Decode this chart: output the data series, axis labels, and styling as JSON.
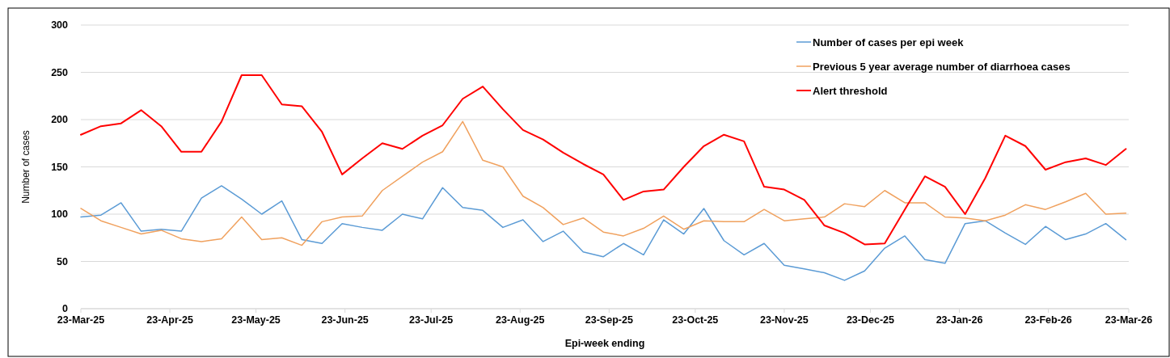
{
  "chart_data": {
    "type": "line",
    "xlabel": "Epi-week ending",
    "ylabel": "Number of cases",
    "x": [
      "2025-03-23",
      "2025-03-30",
      "2025-04-06",
      "2025-04-13",
      "2025-04-20",
      "2025-04-27",
      "2025-05-04",
      "2025-05-11",
      "2025-05-18",
      "2025-05-25",
      "2025-06-01",
      "2025-06-08",
      "2025-06-15",
      "2025-06-22",
      "2025-06-29",
      "2025-07-06",
      "2025-07-13",
      "2025-07-20",
      "2025-07-27",
      "2025-08-03",
      "2025-08-10",
      "2025-08-17",
      "2025-08-24",
      "2025-08-31",
      "2025-09-07",
      "2025-09-14",
      "2025-09-21",
      "2025-09-28",
      "2025-10-05",
      "2025-10-12",
      "2025-10-19",
      "2025-10-26",
      "2025-11-02",
      "2025-11-09",
      "2025-11-16",
      "2025-11-23",
      "2025-11-30",
      "2025-12-07",
      "2025-12-14",
      "2025-12-21",
      "2025-12-28",
      "2026-01-04",
      "2026-01-11",
      "2026-01-18",
      "2026-01-25",
      "2026-02-01",
      "2026-02-08",
      "2026-02-15",
      "2026-02-22",
      "2026-03-01",
      "2026-03-08",
      "2026-03-15",
      "2026-03-22"
    ],
    "series": [
      {
        "name": "Number of cases per epi week",
        "color": "#5b9bd5",
        "values": [
          97,
          99,
          112,
          82,
          84,
          82,
          117,
          130,
          116,
          100,
          114,
          73,
          69,
          90,
          86,
          83,
          100,
          95,
          128,
          107,
          104,
          86,
          94,
          71,
          82,
          60,
          55,
          69,
          57,
          94,
          79,
          106,
          72,
          57,
          69,
          46,
          42,
          38,
          30,
          40,
          64,
          77,
          52,
          48,
          90,
          93,
          80,
          68,
          87,
          73,
          79,
          90,
          73
        ]
      },
      {
        "name": "Previous 5 year average number of diarrhoea cases",
        "color": "#f0a15e",
        "values": [
          106,
          93,
          86,
          79,
          83,
          74,
          71,
          74,
          97,
          73,
          75,
          67,
          92,
          97,
          98,
          125,
          140,
          155,
          166,
          198,
          157,
          150,
          119,
          107,
          89,
          96,
          81,
          77,
          85,
          98,
          84,
          93,
          92,
          92,
          105,
          93,
          95,
          97,
          111,
          108,
          125,
          112,
          112,
          97,
          96,
          93,
          99,
          110,
          105,
          113,
          122,
          100,
          101
        ]
      },
      {
        "name": "Alert threshold",
        "color": "#ff0000",
        "values": [
          184,
          193,
          196,
          210,
          193,
          166,
          166,
          198,
          247,
          247,
          216,
          214,
          187,
          142,
          159,
          175,
          169,
          183,
          194,
          222,
          235,
          211,
          189,
          179,
          165,
          153,
          142,
          115,
          124,
          126,
          150,
          172,
          184,
          177,
          129,
          126,
          115,
          88,
          80,
          68,
          69,
          105,
          140,
          129,
          100,
          138,
          183,
          172,
          147,
          155,
          159,
          152,
          169
        ]
      }
    ],
    "xlim": [
      "2025-03-23",
      "2026-03-23"
    ],
    "xticks": [
      {
        "value": "2025-03-23",
        "label": "23-Mar-25"
      },
      {
        "value": "2025-04-23",
        "label": "23-Apr-25"
      },
      {
        "value": "2025-05-23",
        "label": "23-May-25"
      },
      {
        "value": "2025-06-23",
        "label": "23-Jun-25"
      },
      {
        "value": "2025-07-23",
        "label": "23-Jul-25"
      },
      {
        "value": "2025-08-23",
        "label": "23-Aug-25"
      },
      {
        "value": "2025-09-23",
        "label": "23-Sep-25"
      },
      {
        "value": "2025-10-23",
        "label": "23-Oct-25"
      },
      {
        "value": "2025-11-23",
        "label": "23-Nov-25"
      },
      {
        "value": "2025-12-23",
        "label": "23-Dec-25"
      },
      {
        "value": "2026-01-23",
        "label": "23-Jan-26"
      },
      {
        "value": "2026-02-23",
        "label": "23-Feb-26"
      },
      {
        "value": "2026-03-23",
        "label": "23-Mar-26"
      }
    ],
    "ylim": [
      0,
      300
    ],
    "yticks": [
      0,
      50,
      100,
      150,
      200,
      250,
      300
    ],
    "grid": "y",
    "legend": "top right",
    "marker": "none",
    "line_style": "solid"
  }
}
